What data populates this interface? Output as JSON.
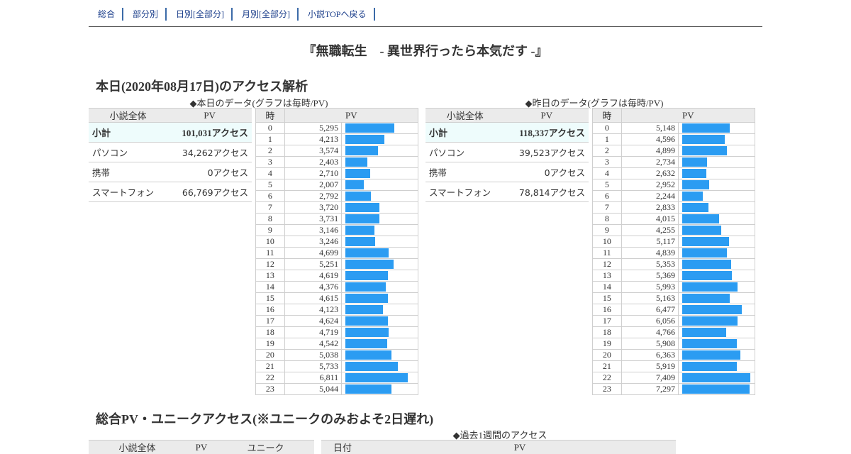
{
  "nav": [
    {
      "label": "総合"
    },
    {
      "label": "部分別"
    },
    {
      "label": "日別[全部分]"
    },
    {
      "label": "月別[全部分]"
    },
    {
      "label": "小説TOPへ戻る"
    }
  ],
  "title": "『無職転生　- 異世界行ったら本気だす -』",
  "today_heading": "本日(2020年08月17日)のアクセス解析",
  "today": {
    "caption": "◆本日のデータ(グラフは毎時/PV)",
    "summary_headers": [
      "小説全体",
      "PV"
    ],
    "summary": [
      {
        "label": "小計",
        "value": "101,031アクセス"
      },
      {
        "label": "パソコン",
        "value": "34,262アクセス"
      },
      {
        "label": "携帯",
        "value": "0アクセス"
      },
      {
        "label": "スマートフォン",
        "value": "66,769アクセス"
      }
    ],
    "hourly_headers": [
      "時",
      "PV"
    ],
    "hourly": [
      {
        "h": "0",
        "pv": "5,295",
        "v": 5295
      },
      {
        "h": "1",
        "pv": "4,213",
        "v": 4213
      },
      {
        "h": "2",
        "pv": "3,574",
        "v": 3574
      },
      {
        "h": "3",
        "pv": "2,403",
        "v": 2403
      },
      {
        "h": "4",
        "pv": "2,710",
        "v": 2710
      },
      {
        "h": "5",
        "pv": "2,007",
        "v": 2007
      },
      {
        "h": "6",
        "pv": "2,792",
        "v": 2792
      },
      {
        "h": "7",
        "pv": "3,720",
        "v": 3720
      },
      {
        "h": "8",
        "pv": "3,731",
        "v": 3731
      },
      {
        "h": "9",
        "pv": "3,146",
        "v": 3146
      },
      {
        "h": "10",
        "pv": "3,246",
        "v": 3246
      },
      {
        "h": "11",
        "pv": "4,699",
        "v": 4699
      },
      {
        "h": "12",
        "pv": "5,251",
        "v": 5251
      },
      {
        "h": "13",
        "pv": "4,619",
        "v": 4619
      },
      {
        "h": "14",
        "pv": "4,376",
        "v": 4376
      },
      {
        "h": "15",
        "pv": "4,615",
        "v": 4615
      },
      {
        "h": "16",
        "pv": "4,123",
        "v": 4123
      },
      {
        "h": "17",
        "pv": "4,624",
        "v": 4624
      },
      {
        "h": "18",
        "pv": "4,719",
        "v": 4719
      },
      {
        "h": "19",
        "pv": "4,542",
        "v": 4542
      },
      {
        "h": "20",
        "pv": "5,038",
        "v": 5038
      },
      {
        "h": "21",
        "pv": "5,733",
        "v": 5733
      },
      {
        "h": "22",
        "pv": "6,811",
        "v": 6811
      },
      {
        "h": "23",
        "pv": "5,044",
        "v": 5044
      }
    ]
  },
  "yesterday": {
    "caption": "◆昨日のデータ(グラフは毎時/PV)",
    "summary_headers": [
      "小説全体",
      "PV"
    ],
    "summary": [
      {
        "label": "小計",
        "value": "118,337アクセス"
      },
      {
        "label": "パソコン",
        "value": "39,523アクセス"
      },
      {
        "label": "携帯",
        "value": "0アクセス"
      },
      {
        "label": "スマートフォン",
        "value": "78,814アクセス"
      }
    ],
    "hourly_headers": [
      "時",
      "PV"
    ],
    "hourly": [
      {
        "h": "0",
        "pv": "5,148",
        "v": 5148
      },
      {
        "h": "1",
        "pv": "4,596",
        "v": 4596
      },
      {
        "h": "2",
        "pv": "4,899",
        "v": 4899
      },
      {
        "h": "3",
        "pv": "2,734",
        "v": 2734
      },
      {
        "h": "4",
        "pv": "2,632",
        "v": 2632
      },
      {
        "h": "5",
        "pv": "2,952",
        "v": 2952
      },
      {
        "h": "6",
        "pv": "2,244",
        "v": 2244
      },
      {
        "h": "7",
        "pv": "2,833",
        "v": 2833
      },
      {
        "h": "8",
        "pv": "4,015",
        "v": 4015
      },
      {
        "h": "9",
        "pv": "4,255",
        "v": 4255
      },
      {
        "h": "10",
        "pv": "5,117",
        "v": 5117
      },
      {
        "h": "11",
        "pv": "4,839",
        "v": 4839
      },
      {
        "h": "12",
        "pv": "5,353",
        "v": 5353
      },
      {
        "h": "13",
        "pv": "5,369",
        "v": 5369
      },
      {
        "h": "14",
        "pv": "5,993",
        "v": 5993
      },
      {
        "h": "15",
        "pv": "5,163",
        "v": 5163
      },
      {
        "h": "16",
        "pv": "6,477",
        "v": 6477
      },
      {
        "h": "17",
        "pv": "6,056",
        "v": 6056
      },
      {
        "h": "18",
        "pv": "4,766",
        "v": 4766
      },
      {
        "h": "19",
        "pv": "5,908",
        "v": 5908
      },
      {
        "h": "20",
        "pv": "6,363",
        "v": 6363
      },
      {
        "h": "21",
        "pv": "5,919",
        "v": 5919
      },
      {
        "h": "22",
        "pv": "7,409",
        "v": 7409
      },
      {
        "h": "23",
        "pv": "7,297",
        "v": 7297
      }
    ]
  },
  "total_heading": "総合PV・ユニークアクセス(※ユニークのみおよそ2日遅れ)",
  "weekly_caption": "◆過去1週間のアクセス",
  "bottom_left_headers": [
    "小説全体",
    "PV",
    "ユニーク"
  ],
  "bottom_right_headers": [
    "日付",
    "PV"
  ],
  "colors": {
    "bar": "#2b9cf2",
    "nav_link": "#1a3d8a",
    "nav_sep": "#3b6aa8",
    "subtotal_bg": "#eefcfc",
    "header_bg": "#ebebeb"
  }
}
